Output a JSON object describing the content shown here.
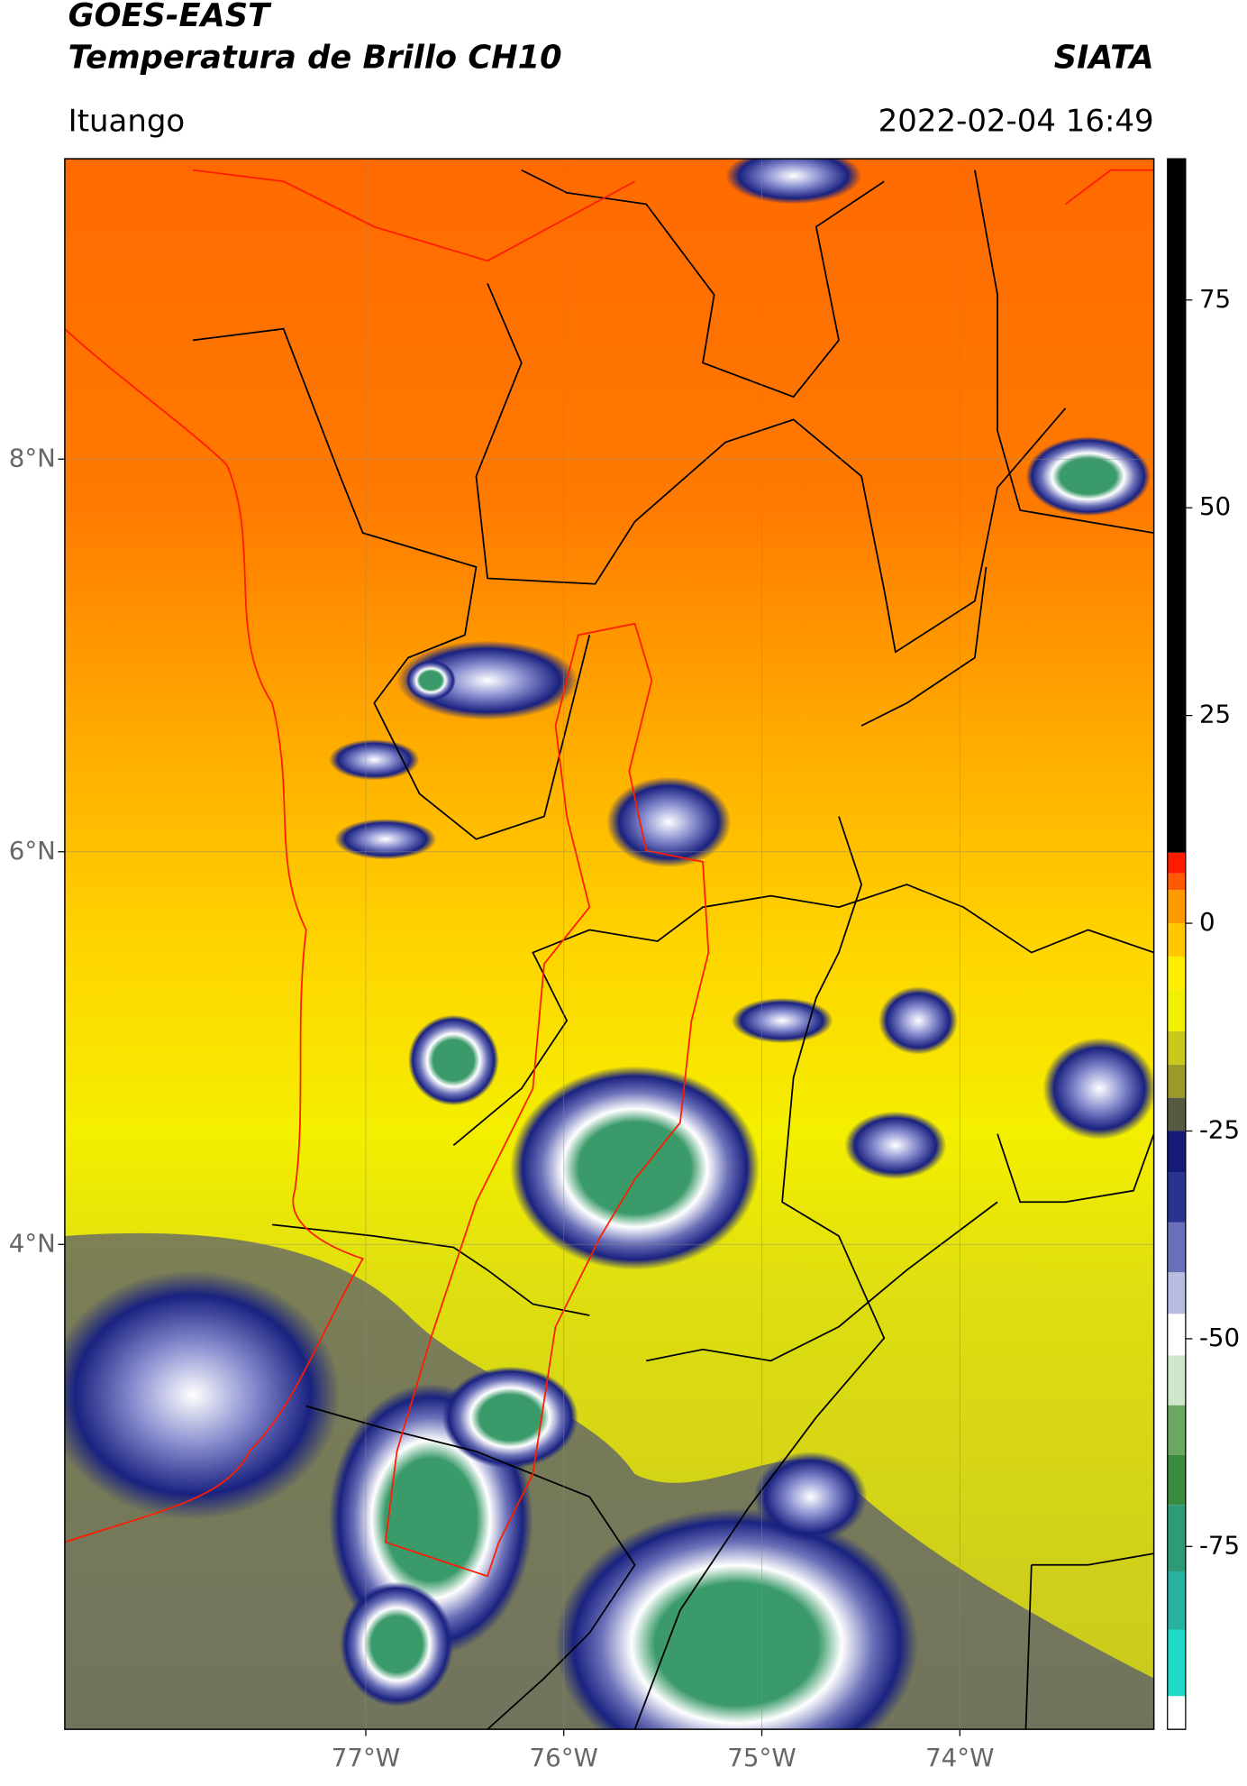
{
  "header": {
    "title": "GOES-EAST",
    "subtitle": "Temperatura de Brillo CH10",
    "source": "SIATA",
    "location": "Ituango",
    "datetime": "2022-02-04 16:49"
  },
  "map": {
    "xlim": [
      -78.52,
      -73.02
    ],
    "ylim": [
      1.53,
      9.53
    ],
    "xticks": [
      {
        "value": -77,
        "label": "77°W"
      },
      {
        "value": -76,
        "label": "76°W"
      },
      {
        "value": -75,
        "label": "75°W"
      },
      {
        "value": -74,
        "label": "74°W"
      }
    ],
    "yticks": [
      {
        "value": 8,
        "label": "8°N"
      },
      {
        "value": 6,
        "label": "6°N"
      },
      {
        "value": 4,
        "label": "4°N"
      }
    ],
    "grid": true
  },
  "colorbar": {
    "range": [
      -97,
      92
    ],
    "ticks": [
      75,
      50,
      25,
      0,
      -25,
      -50,
      -75
    ],
    "stops": [
      {
        "value": -97,
        "color": "#ffffff"
      },
      {
        "value": -93,
        "color": "#20d8c8"
      },
      {
        "value": -85,
        "color": "#28b0a0"
      },
      {
        "value": -78,
        "color": "#2f9a78"
      },
      {
        "value": -70,
        "color": "#3a8a40"
      },
      {
        "value": -64,
        "color": "#6aa860"
      },
      {
        "value": -58,
        "color": "#cfe6c8"
      },
      {
        "value": -52,
        "color": "#ffffff"
      },
      {
        "value": -47,
        "color": "#b8bce0"
      },
      {
        "value": -42,
        "color": "#6a70b8"
      },
      {
        "value": -36,
        "color": "#2a3390"
      },
      {
        "value": -30,
        "color": "#141a78"
      },
      {
        "value": -25,
        "color": "#555a40"
      },
      {
        "value": -21,
        "color": "#9a9a28"
      },
      {
        "value": -17,
        "color": "#c8c81a"
      },
      {
        "value": -13,
        "color": "#f0f000"
      },
      {
        "value": -8,
        "color": "#ffee00"
      },
      {
        "value": -4,
        "color": "#ffc800"
      },
      {
        "value": 0,
        "color": "#ff9a00"
      },
      {
        "value": 4,
        "color": "#ff5a00"
      },
      {
        "value": 6,
        "color": "#ff1a00"
      },
      {
        "value": 8.5,
        "color": "#000000"
      }
    ]
  }
}
